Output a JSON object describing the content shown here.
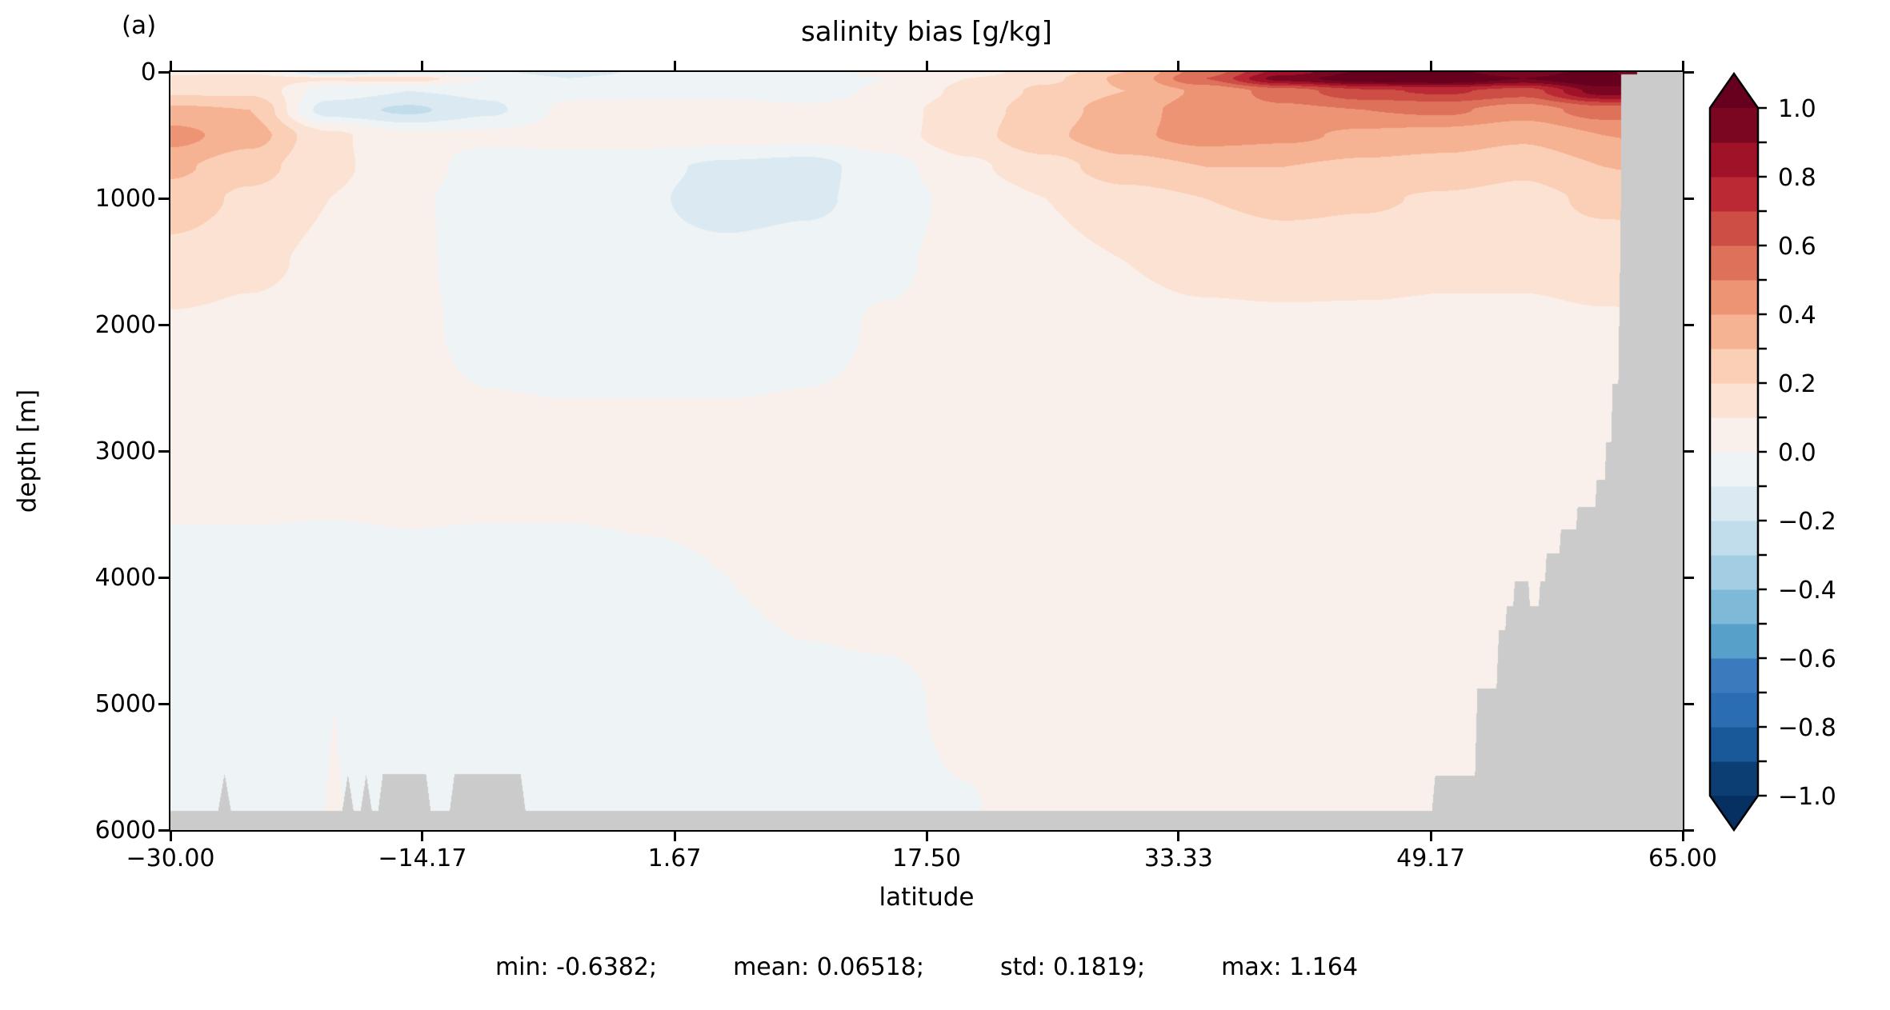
{
  "panel_label": "(a)",
  "title": "salinity bias [g/kg]",
  "xlabel": "latitude",
  "ylabel": "depth [m]",
  "stats": {
    "min": "min: -0.6382;",
    "mean": "mean: 0.06518;",
    "std": "std: 0.1819;",
    "max": "max: 1.164"
  },
  "chart_data": {
    "type": "heatmap",
    "title": "salinity bias [g/kg]",
    "xlabel": "latitude",
    "ylabel": "depth [m]",
    "xlim": [
      -30,
      65
    ],
    "ylim": [
      6000,
      0
    ],
    "x_ticks": [
      -30.0,
      -14.17,
      1.67,
      17.5,
      33.33,
      49.17,
      65.0
    ],
    "x_tick_labels": [
      "−30.00",
      "−14.17",
      "1.67",
      "17.50",
      "33.33",
      "49.17",
      "65.00"
    ],
    "y_ticks": [
      0,
      1000,
      2000,
      3000,
      4000,
      5000,
      6000
    ],
    "y_tick_labels": [
      "0",
      "1000",
      "2000",
      "3000",
      "4000",
      "5000",
      "6000"
    ],
    "levels": {
      "min": -1.0,
      "max": 1.0,
      "step": 0.1
    },
    "colorbar": {
      "tick_step": 0.1,
      "label_values": [
        1.0,
        0.8,
        0.6,
        0.4,
        0.2,
        0.0,
        -0.2,
        -0.4,
        -0.6,
        -0.8,
        -1.0
      ],
      "label_texts": [
        "1.0",
        "0.8",
        "0.6",
        "0.4",
        "0.2",
        "0.0",
        "−0.2",
        "−0.4",
        "−0.6",
        "−0.8",
        "−1.0"
      ],
      "bin_colors_low_to_high": [
        "#0c3e74",
        "#1a5999",
        "#2a6db2",
        "#3a7abd",
        "#57a0ca",
        "#7eb9d7",
        "#a2cde3",
        "#c1ddec",
        "#dbeaf2",
        "#eef3f5",
        "#f9f0eb",
        "#fce2d3",
        "#fbceb6",
        "#f6b393",
        "#ed9475",
        "#de715a",
        "#cd4e45",
        "#bb2a34",
        "#9f1228",
        "#7a0622"
      ],
      "under_color": "#053061",
      "over_color": "#67001f"
    },
    "mask_color": "#cbcbcb",
    "grid": {
      "lat": [
        -30,
        -25,
        -20,
        -15,
        -10,
        -5,
        0,
        5,
        10,
        15,
        20,
        25,
        30,
        35,
        40,
        45,
        50,
        55,
        60,
        65
      ],
      "depth": [
        0,
        50,
        150,
        300,
        500,
        750,
        1000,
        1500,
        2000,
        3000,
        4000,
        5000,
        6000
      ],
      "values": [
        [
          0.08,
          0.08,
          -0.22,
          -0.12,
          -0.08,
          -0.15,
          -0.08,
          -0.05,
          -0.08,
          0.05,
          0.05,
          0.15,
          0.3,
          0.55,
          0.85,
          1.02,
          1.05,
          0.9,
          1.1,
          1.1
        ],
        [
          0.12,
          0.15,
          0.12,
          0.15,
          0.0,
          -0.1,
          -0.05,
          -0.08,
          -0.1,
          0.0,
          0.1,
          0.18,
          0.32,
          0.6,
          0.95,
          1.08,
          1.12,
          1.0,
          1.14,
          1.14
        ],
        [
          0.18,
          0.18,
          -0.05,
          -0.1,
          -0.08,
          -0.02,
          -0.03,
          -0.03,
          -0.05,
          0.02,
          0.12,
          0.22,
          0.3,
          0.42,
          0.55,
          0.68,
          0.72,
          0.65,
          0.95,
          0.95
        ],
        [
          0.32,
          0.3,
          -0.15,
          -0.22,
          -0.12,
          0.02,
          0.04,
          0.04,
          0.02,
          0.06,
          0.15,
          0.25,
          0.36,
          0.45,
          0.48,
          0.5,
          0.52,
          0.45,
          0.55,
          0.55
        ],
        [
          0.44,
          0.34,
          0.12,
          0.02,
          0.02,
          0.04,
          0.05,
          0.04,
          0.03,
          0.06,
          0.16,
          0.28,
          0.38,
          0.44,
          0.42,
          0.38,
          0.36,
          0.32,
          0.4,
          0.42
        ],
        [
          0.32,
          0.24,
          0.12,
          0.04,
          -0.04,
          -0.06,
          -0.08,
          -0.12,
          -0.14,
          -0.04,
          0.08,
          0.16,
          0.26,
          0.3,
          0.3,
          0.28,
          0.26,
          0.22,
          0.3,
          0.32
        ],
        [
          0.26,
          0.18,
          0.1,
          0.02,
          -0.06,
          -0.08,
          -0.09,
          -0.14,
          -0.12,
          -0.06,
          0.04,
          0.1,
          0.16,
          0.2,
          0.22,
          0.21,
          0.19,
          0.17,
          0.22,
          0.24
        ],
        [
          0.16,
          0.12,
          0.08,
          0.02,
          -0.05,
          -0.07,
          -0.07,
          -0.07,
          -0.05,
          -0.02,
          0.04,
          0.07,
          0.1,
          0.13,
          0.15,
          0.14,
          0.12,
          0.12,
          0.14,
          0.15
        ],
        [
          0.09,
          0.08,
          0.06,
          0.02,
          -0.03,
          -0.05,
          -0.05,
          -0.05,
          -0.03,
          0.01,
          0.04,
          0.06,
          0.07,
          0.08,
          0.08,
          0.08,
          0.08,
          0.08,
          0.09,
          0.09
        ],
        [
          0.05,
          0.05,
          0.04,
          0.04,
          0.03,
          0.03,
          0.03,
          0.03,
          0.03,
          0.03,
          0.04,
          0.04,
          0.05,
          0.05,
          0.05,
          0.05,
          0.05,
          0.06,
          0.06,
          0.06
        ],
        [
          -0.03,
          -0.03,
          -0.03,
          -0.02,
          -0.02,
          -0.02,
          -0.01,
          0.0,
          0.01,
          0.02,
          0.03,
          0.03,
          0.04,
          0.04,
          0.04,
          0.05,
          0.05,
          0.05,
          0.06,
          0.06
        ],
        [
          -0.04,
          -0.04,
          -0.04,
          -0.03,
          -0.03,
          -0.03,
          -0.02,
          -0.02,
          -0.01,
          -0.01,
          0.01,
          0.03,
          0.03,
          0.04,
          0.04,
          0.04,
          0.05,
          0.05,
          0.05,
          0.05
        ],
        [
          -0.04,
          -0.04,
          -0.04,
          -0.03,
          -0.03,
          -0.03,
          -0.02,
          -0.02,
          -0.01,
          -0.015,
          -0.005,
          0.03,
          0.03,
          0.03,
          0.04,
          0.04,
          0.04,
          0.05,
          0.05,
          0.05
        ]
      ]
    },
    "bathymetry": {
      "floor_profile": [
        [
          -30,
          5845
        ],
        [
          -27.0,
          5845
        ],
        [
          -26.6,
          5555
        ],
        [
          -26.2,
          5845
        ],
        [
          -19.2,
          5845
        ],
        [
          -18.85,
          5560
        ],
        [
          -18.5,
          5845
        ],
        [
          -18.05,
          5845
        ],
        [
          -17.7,
          5560
        ],
        [
          -17.35,
          5845
        ],
        [
          -16.95,
          5845
        ],
        [
          -16.65,
          5555
        ],
        [
          -13.95,
          5555
        ],
        [
          -13.65,
          5845
        ],
        [
          -12.45,
          5845
        ],
        [
          -12.15,
          5555
        ],
        [
          -8.0,
          5555
        ],
        [
          -7.7,
          5845
        ],
        [
          49.25,
          5845
        ],
        [
          49.45,
          5570
        ],
        [
          51.95,
          5570
        ],
        [
          52.1,
          4880
        ],
        [
          53.3,
          4880
        ],
        [
          53.45,
          4420
        ],
        [
          53.85,
          4420
        ],
        [
          53.95,
          4230
        ],
        [
          54.35,
          4230
        ],
        [
          54.45,
          4030
        ],
        [
          55.3,
          4030
        ],
        [
          55.4,
          4230
        ],
        [
          55.95,
          4230
        ],
        [
          56.05,
          4030
        ],
        [
          56.35,
          4030
        ],
        [
          56.45,
          3810
        ],
        [
          57.25,
          3810
        ],
        [
          57.35,
          3620
        ],
        [
          58.3,
          3620
        ],
        [
          58.4,
          3440
        ],
        [
          59.5,
          3440
        ],
        [
          59.6,
          3230
        ],
        [
          60.1,
          3230
        ],
        [
          60.2,
          2930
        ],
        [
          60.5,
          2930
        ],
        [
          60.6,
          2470
        ],
        [
          60.95,
          2470
        ],
        [
          61.1,
          1200
        ],
        [
          61.15,
          0
        ],
        [
          65,
          0
        ]
      ],
      "bottom_plume": {
        "lat_center": -19.7,
        "half_width": 0.6,
        "top_depth": 5050,
        "base_depth": 5845,
        "value": 0.05
      },
      "surface_overhang": {
        "lat_from": 61.0,
        "lat_to": 62.15,
        "depth_to": 16,
        "value": 0.95
      }
    }
  }
}
